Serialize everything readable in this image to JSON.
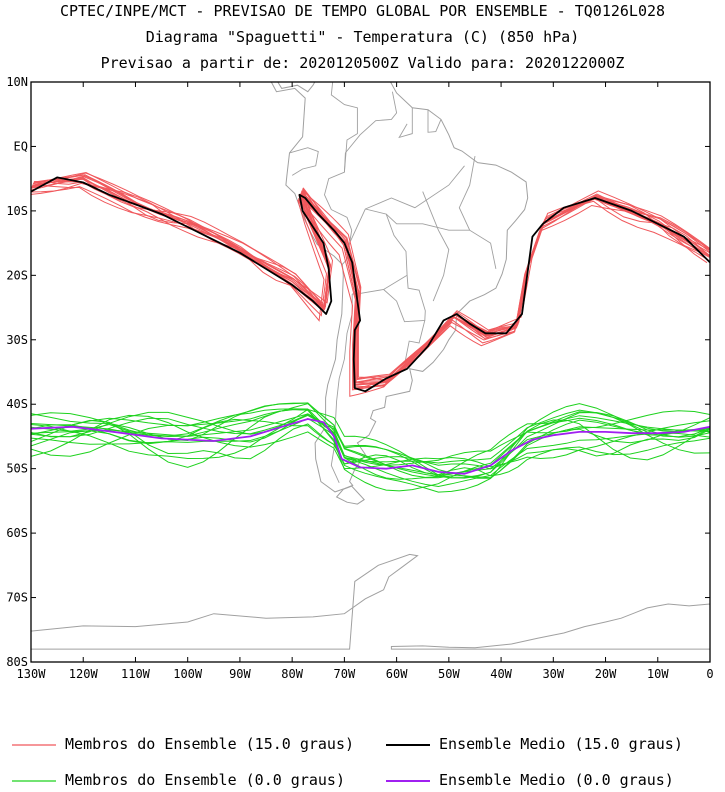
{
  "header": {
    "line1": "CPTEC/INPE/MCT - PREVISAO DE TEMPO GLOBAL POR ENSEMBLE - TQ0126L028",
    "line2": "Diagrama \"Spaguetti\" - Temperatura (C) (850 hPa)",
    "line3": "Previsao a partir de: 2020120500Z  Valido para: 2020122000Z"
  },
  "chart_data": {
    "type": "line",
    "title": "Diagrama \"Spaguetti\" - Temperatura (C) (850 hPa)",
    "xlabel": "",
    "ylabel": "",
    "xlim": [
      -130,
      0
    ],
    "ylim": [
      -80,
      10
    ],
    "x_ticks": [
      {
        "v": -130,
        "label": "130W"
      },
      {
        "v": -120,
        "label": "120W"
      },
      {
        "v": -110,
        "label": "110W"
      },
      {
        "v": -100,
        "label": "100W"
      },
      {
        "v": -90,
        "label": "90W"
      },
      {
        "v": -80,
        "label": "80W"
      },
      {
        "v": -70,
        "label": "70W"
      },
      {
        "v": -60,
        "label": "60W"
      },
      {
        "v": -50,
        "label": "50W"
      },
      {
        "v": -40,
        "label": "40W"
      },
      {
        "v": -30,
        "label": "30W"
      },
      {
        "v": -20,
        "label": "20W"
      },
      {
        "v": -10,
        "label": "10W"
      },
      {
        "v": 0,
        "label": "0"
      }
    ],
    "y_ticks": [
      {
        "v": 10,
        "label": "10N"
      },
      {
        "v": 0,
        "label": "EQ"
      },
      {
        "v": -10,
        "label": "10S"
      },
      {
        "v": -20,
        "label": "20S"
      },
      {
        "v": -30,
        "label": "30S"
      },
      {
        "v": -40,
        "label": "40S"
      },
      {
        "v": -50,
        "label": "50S"
      },
      {
        "v": -60,
        "label": "60S"
      },
      {
        "v": -70,
        "label": "70S"
      },
      {
        "v": -80,
        "label": "80S"
      }
    ],
    "series": [
      {
        "name": "Ensemble Medio (15.0 graus)",
        "color": "#000000",
        "points": [
          [
            -130,
            -7
          ],
          [
            -125,
            -4.8
          ],
          [
            -120,
            -5.6
          ],
          [
            -115,
            -7.5
          ],
          [
            -110,
            -9
          ],
          [
            -105,
            -10.5
          ],
          [
            -100,
            -12.5
          ],
          [
            -95,
            -14.5
          ],
          [
            -90,
            -16.5
          ],
          [
            -85,
            -19
          ],
          [
            -80,
            -21.5
          ],
          [
            -76,
            -24
          ],
          [
            -73.5,
            -26
          ],
          [
            -72.5,
            -24
          ],
          [
            -73,
            -19
          ],
          [
            -74,
            -15
          ],
          [
            -76,
            -12.5
          ],
          [
            -78,
            -10
          ],
          [
            -78.6,
            -7.5
          ],
          [
            -77.5,
            -8
          ],
          [
            -75,
            -10.5
          ],
          [
            -72,
            -13
          ],
          [
            -70,
            -15
          ],
          [
            -68.5,
            -18
          ],
          [
            -67.5,
            -24
          ],
          [
            -67,
            -27
          ],
          [
            -68,
            -28.5
          ],
          [
            -68.2,
            -33
          ],
          [
            -68,
            -37.5
          ],
          [
            -66,
            -38
          ],
          [
            -62,
            -36
          ],
          [
            -58,
            -34.5
          ],
          [
            -54,
            -31
          ],
          [
            -51,
            -27
          ],
          [
            -48.5,
            -26
          ],
          [
            -46,
            -27.5
          ],
          [
            -43,
            -29
          ],
          [
            -39,
            -29
          ],
          [
            -36,
            -26
          ],
          [
            -35,
            -20
          ],
          [
            -34,
            -14
          ],
          [
            -32,
            -12
          ],
          [
            -28,
            -9.5
          ],
          [
            -22,
            -8
          ],
          [
            -15,
            -10
          ],
          [
            -10,
            -12
          ],
          [
            -5,
            -14
          ],
          [
            0,
            -18
          ]
        ]
      },
      {
        "name": "Ensemble Medio (0.0 graus)",
        "color": "#a020f0",
        "points": [
          [
            -130,
            -43.8
          ],
          [
            -122,
            -43.5
          ],
          [
            -115,
            -44.2
          ],
          [
            -105,
            -45.3
          ],
          [
            -95,
            -45.7
          ],
          [
            -88,
            -45
          ],
          [
            -82,
            -43.5
          ],
          [
            -77,
            -42.3
          ],
          [
            -74,
            -42.8
          ],
          [
            -72,
            -45
          ],
          [
            -70.5,
            -48.5
          ],
          [
            -67,
            -49.8
          ],
          [
            -62,
            -50
          ],
          [
            -57,
            -49.5
          ],
          [
            -52,
            -50.5
          ],
          [
            -47,
            -50.8
          ],
          [
            -42,
            -49.5
          ],
          [
            -38,
            -47.2
          ],
          [
            -34,
            -45.5
          ],
          [
            -30,
            -44.8
          ],
          [
            -25,
            -44.3
          ],
          [
            -20,
            -44.3
          ],
          [
            -15,
            -44.5
          ],
          [
            -10,
            -44.5
          ],
          [
            -5,
            -44.3
          ],
          [
            0,
            -43.5
          ]
        ]
      },
      {
        "name": "Membros do Ensemble (15.0 graus)",
        "color": "#f0585c",
        "points": [
          [
            -130,
            -6.5
          ],
          [
            -120,
            -5
          ],
          [
            -110,
            -9
          ],
          [
            -100,
            -12
          ],
          [
            -90,
            -16
          ],
          [
            -80,
            -21
          ],
          [
            -74,
            -25.5
          ],
          [
            -73,
            -19
          ],
          [
            -77,
            -11
          ],
          [
            -78.5,
            -7.5
          ],
          [
            -74,
            -11.5
          ],
          [
            -70,
            -15
          ],
          [
            -67.5,
            -23
          ],
          [
            -68,
            -30
          ],
          [
            -68,
            -37
          ],
          [
            -62,
            -36.5
          ],
          [
            -55,
            -31.5
          ],
          [
            -49,
            -26.5
          ],
          [
            -43,
            -29.5
          ],
          [
            -37,
            -28
          ],
          [
            -35,
            -19
          ],
          [
            -32,
            -12
          ],
          [
            -22,
            -8
          ],
          [
            -10,
            -12
          ],
          [
            0,
            -17
          ]
        ]
      },
      {
        "name": "Membros do Ensemble (0.0 graus)",
        "color": "#1ed21e",
        "points": [
          [
            -130,
            -44.5
          ],
          [
            -115,
            -44
          ],
          [
            -100,
            -45
          ],
          [
            -88,
            -44
          ],
          [
            -77,
            -41.5
          ],
          [
            -72,
            -44.5
          ],
          [
            -70,
            -48
          ],
          [
            -62,
            -49.5
          ],
          [
            -52,
            -51
          ],
          [
            -42,
            -50
          ],
          [
            -35,
            -45.5
          ],
          [
            -25,
            -43.5
          ],
          [
            -12,
            -44
          ],
          [
            0,
            -44
          ]
        ]
      }
    ],
    "legend": [
      {
        "label": "Membros do Ensemble (15.0 graus)",
        "color": "#f0585c"
      },
      {
        "label": "Ensemble Medio (15.0 graus)",
        "color": "#000000"
      },
      {
        "label": "Membros do Ensemble (0.0 graus)",
        "color": "#1ed21e"
      },
      {
        "label": "Ensemble Medio (0.0 graus)",
        "color": "#a020f0"
      }
    ],
    "members_count": 14,
    "legend_position": "bottom",
    "grid": false
  }
}
